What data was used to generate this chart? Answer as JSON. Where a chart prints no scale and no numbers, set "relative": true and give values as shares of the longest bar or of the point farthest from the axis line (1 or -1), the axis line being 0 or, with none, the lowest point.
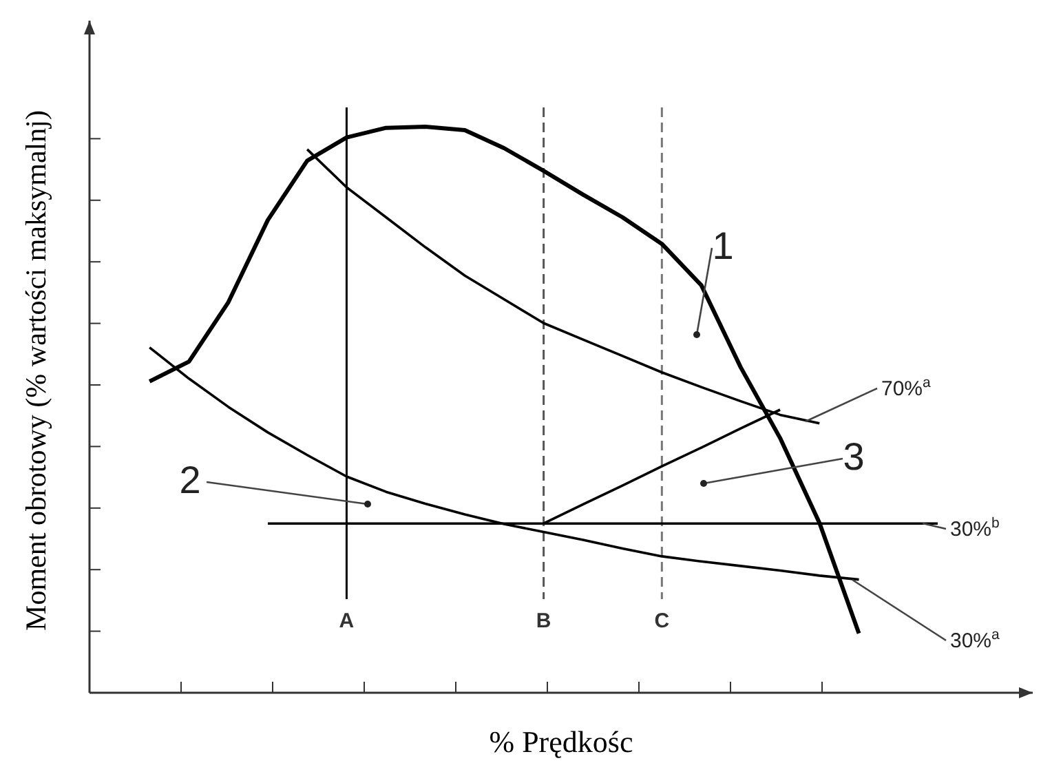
{
  "chart_data": {
    "type": "line",
    "relative": true,
    "xlabel": "% Prędkośc",
    "ylabel": "Moment obrotowy (% wartości maksymalnj)",
    "categories": [
      null,
      null,
      null,
      null,
      null,
      null,
      "A",
      null,
      null,
      null,
      null,
      "B",
      null,
      null,
      "C",
      null,
      null,
      null,
      null,
      null,
      null,
      null
    ],
    "marker": "none",
    "line_style": "solid",
    "series": [
      {
        "color": "#000000",
        "values": [
          null,
          0.55,
          0.585,
          0.69,
          0.835,
          0.94,
          0.981,
          0.998,
          1,
          0.994,
          0.962,
          0.922,
          0.88,
          0.84,
          0.793,
          0.72,
          0.575,
          0.45,
          0.3,
          0.105,
          null,
          null
        ]
      },
      {
        "color": "#000000",
        "values": [
          null,
          null,
          null,
          null,
          null,
          0.96,
          0.893,
          0.84,
          0.787,
          0.737,
          0.695,
          0.653,
          0.624,
          0.595,
          0.566,
          0.54,
          0.515,
          0.491,
          0.476,
          null,
          null,
          null
        ]
      },
      {
        "color": "#000000",
        "values": [
          null,
          0.61,
          0.555,
          0.505,
          0.46,
          0.42,
          0.382,
          0.355,
          0.334,
          0.315,
          0.298,
          0.284,
          0.27,
          0.255,
          0.241,
          0.232,
          0.224,
          0.216,
          0.207,
          0.2,
          null,
          null
        ]
      },
      {
        "color": "#000000",
        "values": [
          null,
          null,
          null,
          null,
          0.299,
          0.299,
          0.299,
          0.299,
          0.299,
          0.299,
          0.299,
          0.299,
          0.299,
          0.299,
          0.299,
          0.299,
          0.299,
          0.299,
          0.299,
          0.299,
          0.299,
          0.299
        ]
      },
      {
        "color": "#000000",
        "values": [
          null,
          null,
          null,
          null,
          null,
          null,
          null,
          null,
          null,
          null,
          null,
          0.299,
          0.333,
          0.366,
          0.4,
          0.433,
          0.467,
          0.5,
          null,
          null,
          null,
          null
        ]
      }
    ],
    "ref_lines": [
      {
        "axis": "x",
        "value": "A",
        "line_style": "solid",
        "color": "#000000"
      },
      {
        "axis": "x",
        "value": "B",
        "line_style": "dashed",
        "color": "#555555"
      },
      {
        "axis": "x",
        "value": "C",
        "line_style": "dashed",
        "color": "#777777"
      }
    ],
    "annotations": [
      "1",
      "2",
      "3",
      "70%$^{a}$",
      "30%$^{b}$",
      "30%$^{a}$"
    ]
  }
}
